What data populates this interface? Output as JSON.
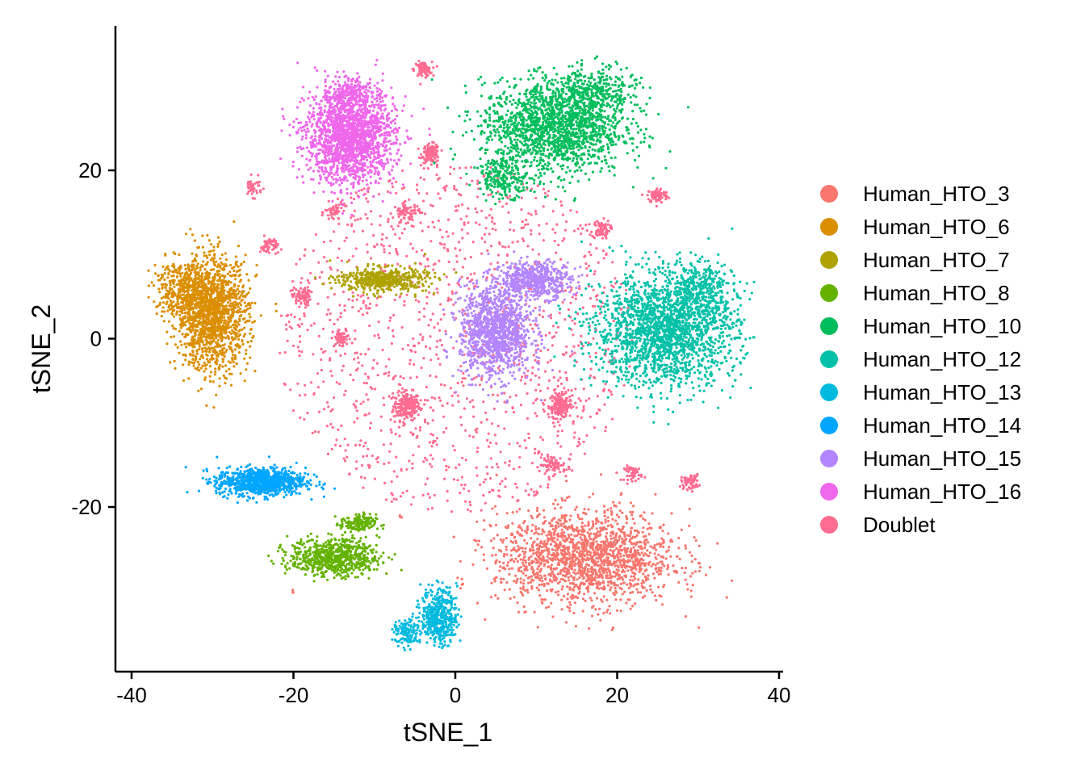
{
  "chart_data": {
    "type": "scatter",
    "title": "",
    "xlabel": "tSNE_1",
    "ylabel": "tSNE_2",
    "xlim": [
      -41,
      41
    ],
    "ylim": [
      -41,
      38
    ],
    "xticks": [
      -40,
      -20,
      0,
      20,
      40
    ],
    "yticks": [
      -20,
      0,
      20
    ],
    "xtick_labels": [
      "-40",
      "-20",
      "0",
      "20",
      "40"
    ],
    "ytick_labels": [
      "-20",
      "0",
      "20"
    ],
    "grid": false,
    "legend_position": "right",
    "series": [
      {
        "name": "Human_HTO_3",
        "color": "#F8766D",
        "clusters": [
          [
            16,
            -26,
            10,
            5,
            1700
          ],
          [
            -20,
            -30,
            0.3,
            0.3,
            4
          ],
          [
            -7,
            -21,
            0.3,
            0.3,
            3
          ]
        ]
      },
      {
        "name": "Human_HTO_6",
        "color": "#DB8E00",
        "clusters": [
          [
            -30,
            3,
            4,
            6,
            1500
          ],
          [
            -34,
            6,
            3,
            3,
            300
          ]
        ]
      },
      {
        "name": "Human_HTO_7",
        "color": "#AEA200",
        "clusters": [
          [
            -9,
            7,
            5,
            1.3,
            500
          ]
        ]
      },
      {
        "name": "Human_HTO_8",
        "color": "#64B200",
        "clusters": [
          [
            -15,
            -26,
            5,
            2,
            700
          ],
          [
            -12,
            -22,
            2,
            1,
            150
          ]
        ]
      },
      {
        "name": "Human_HTO_10",
        "color": "#00BD5C",
        "clusters": [
          [
            12,
            25,
            8,
            5,
            1600
          ],
          [
            17,
            29,
            5,
            3,
            400
          ],
          [
            6,
            19,
            3,
            2,
            200
          ]
        ]
      },
      {
        "name": "Human_HTO_12",
        "color": "#00C1A7",
        "clusters": [
          [
            26,
            1,
            8,
            6,
            2000
          ],
          [
            30,
            6,
            4,
            3,
            300
          ]
        ]
      },
      {
        "name": "Human_HTO_13",
        "color": "#00BADE",
        "clusters": [
          [
            -2,
            -33,
            2,
            3,
            450
          ],
          [
            -6,
            -35,
            1.5,
            1.5,
            120
          ]
        ]
      },
      {
        "name": "Human_HTO_14",
        "color": "#00A6FF",
        "clusters": [
          [
            -24,
            -17,
            5,
            1.5,
            900
          ]
        ]
      },
      {
        "name": "Human_HTO_15",
        "color": "#B385FF",
        "clusters": [
          [
            5,
            1,
            4,
            5,
            1200
          ],
          [
            10,
            7,
            4,
            2,
            500
          ]
        ]
      },
      {
        "name": "Human_HTO_16",
        "color": "#EF67EB",
        "clusters": [
          [
            -13,
            24,
            5,
            5,
            1800
          ],
          [
            -13,
            29,
            3,
            1.5,
            200
          ]
        ]
      },
      {
        "name": "Doublet",
        "color": "#FF6C91",
        "clusters": [
          [
            -6,
            -8,
            1.5,
            1.5,
            220
          ],
          [
            13,
            -8,
            1.3,
            1.3,
            180
          ],
          [
            -3,
            22,
            1,
            1,
            120
          ],
          [
            -4,
            32,
            1,
            0.8,
            80
          ],
          [
            25,
            17,
            1.2,
            0.8,
            90
          ],
          [
            18,
            13,
            1,
            1,
            80
          ],
          [
            -19,
            5,
            1,
            1,
            80
          ],
          [
            -14,
            0,
            1,
            1,
            60
          ],
          [
            29,
            -17,
            1,
            0.8,
            60
          ],
          [
            12,
            -15,
            1.5,
            1,
            80
          ],
          [
            22,
            -16,
            1,
            0.8,
            50
          ],
          [
            -6,
            15,
            1.5,
            1,
            70
          ],
          [
            -23,
            11,
            1,
            1,
            50
          ],
          [
            -25,
            18,
            1,
            1,
            40
          ],
          [
            -15,
            15,
            1,
            1,
            50
          ],
          [
            0,
            0,
            22,
            22,
            1300
          ]
        ]
      }
    ]
  }
}
